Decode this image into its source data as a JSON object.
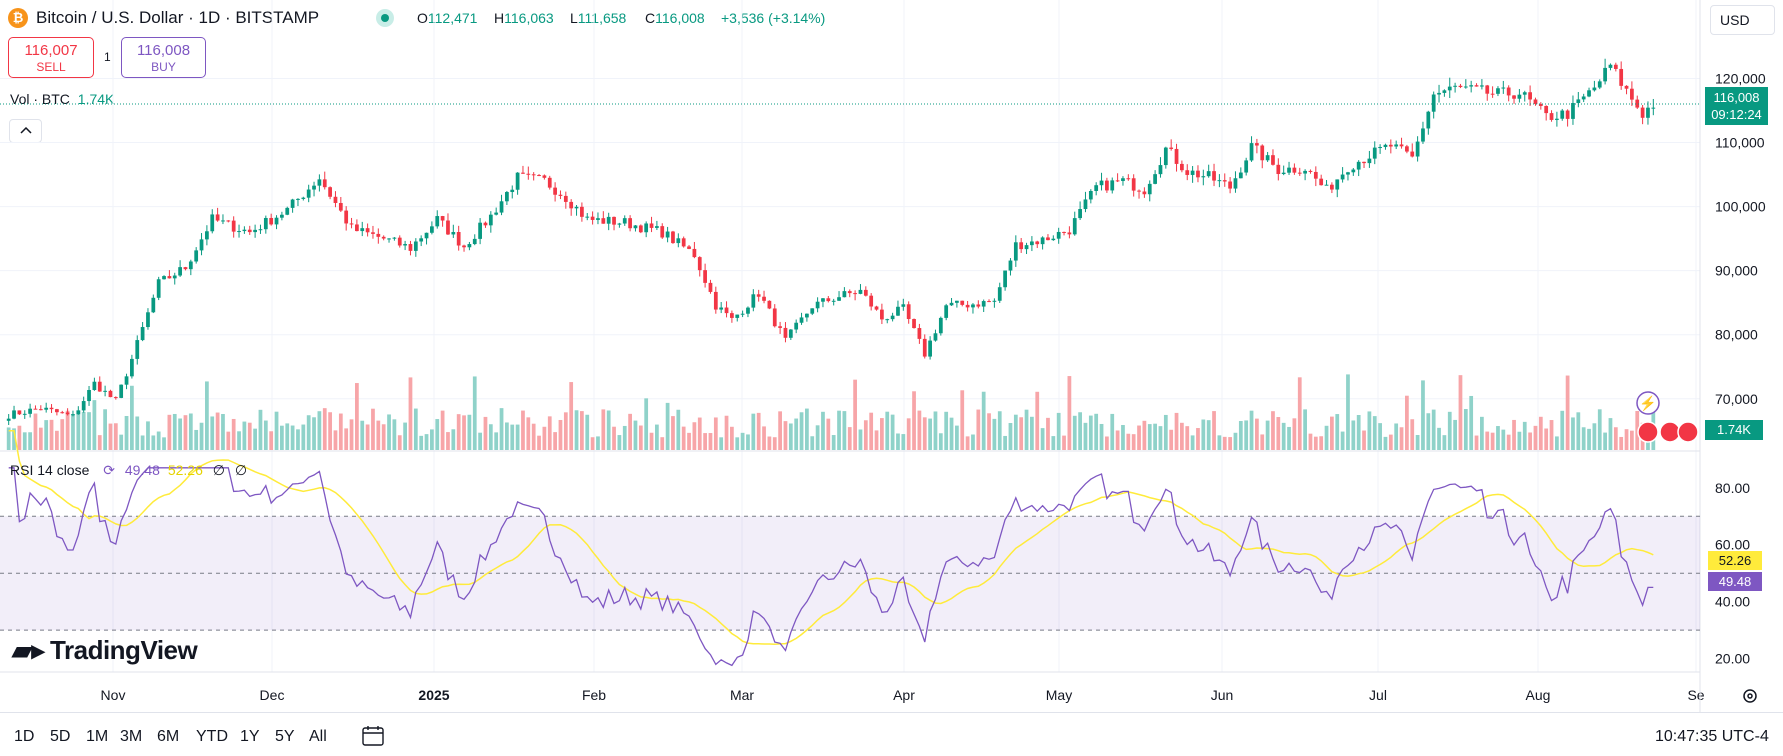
{
  "header": {
    "icon_glyph": "₿",
    "title": "Bitcoin / U.S. Dollar · 1D · BITSTAMP",
    "ohlc": {
      "o_label": "O",
      "o": "112,471",
      "h_label": "H",
      "h": "116,063",
      "l_label": "L",
      "l": "111,658",
      "c_label": "C",
      "c": "116,008",
      "change": "+3,536 (+3.14%)"
    },
    "currency": "USD"
  },
  "trade": {
    "sell_price": "116,007",
    "sell_label": "SELL",
    "spread": "1",
    "buy_price": "116,008",
    "buy_label": "BUY"
  },
  "volume_legend": {
    "label": "Vol · BTC",
    "value": "1.74K"
  },
  "rsi_legend": {
    "label": "RSI 14 close",
    "rsi": "49.48",
    "ma": "52.26",
    "extra1": "∅",
    "extra2": "∅"
  },
  "price_badge": {
    "price": "116,008",
    "countdown": "09:12:24"
  },
  "volume_badge": "1.74K",
  "rsi_badges": {
    "ma": "52.26",
    "rsi": "49.48"
  },
  "logo": "TradingView",
  "timeframes": [
    "1D",
    "5D",
    "1M",
    "3M",
    "6M",
    "YTD",
    "1Y",
    "5Y",
    "All"
  ],
  "clock": "10:47:35 UTC-4",
  "colors": {
    "up": "#089981",
    "down": "#f23645",
    "rsi": "#7e57c2",
    "rsi_ma": "#ffeb3b",
    "vol_up": "#8fd2c9",
    "vol_down": "#f7a5a8"
  },
  "icons": [
    "bitcoin-icon",
    "live-status-icon",
    "collapse-chevron-icon",
    "compare-icon",
    "bolt-icon",
    "us-flag-icon",
    "settings-gear-icon"
  ],
  "chart_data": {
    "type": "candlestick",
    "price_axis": {
      "ticks": [
        "120,000",
        "110,000",
        "100,000",
        "90,000",
        "80,000",
        "70,000"
      ],
      "ylim": [
        62000,
        126000
      ]
    },
    "rsi_axis": {
      "ticks": [
        "80.00",
        "60.00",
        "40.00",
        "20.00"
      ],
      "ylim": [
        16,
        88
      ],
      "bands": [
        30,
        70
      ]
    },
    "time_axis": {
      "labels": [
        "Nov",
        "Dec",
        "2025",
        "Feb",
        "Mar",
        "Apr",
        "May",
        "Jun",
        "Jul",
        "Aug",
        "Se"
      ]
    },
    "anchors": [
      [
        0,
        67500
      ],
      [
        6,
        68500
      ],
      [
        12,
        67200
      ],
      [
        16,
        72400
      ],
      [
        20,
        69600
      ],
      [
        23,
        76200
      ],
      [
        28,
        88000
      ],
      [
        33,
        90500
      ],
      [
        38,
        98000
      ],
      [
        45,
        96000
      ],
      [
        52,
        99500
      ],
      [
        58,
        104500
      ],
      [
        64,
        96500
      ],
      [
        70,
        95000
      ],
      [
        75,
        93500
      ],
      [
        80,
        98000
      ],
      [
        85,
        93800
      ],
      [
        90,
        98500
      ],
      [
        95,
        104500
      ],
      [
        100,
        104000
      ],
      [
        104,
        101500
      ],
      [
        108,
        98000
      ],
      [
        115,
        97500
      ],
      [
        122,
        96000
      ],
      [
        128,
        92500
      ],
      [
        132,
        84600
      ],
      [
        135,
        82300
      ],
      [
        140,
        86500
      ],
      [
        145,
        79000
      ],
      [
        150,
        84500
      ],
      [
        155,
        86000
      ],
      [
        159,
        86800
      ],
      [
        163,
        82500
      ],
      [
        167,
        84000
      ],
      [
        171,
        77000
      ],
      [
        175,
        84500
      ],
      [
        180,
        84800
      ],
      [
        184,
        85200
      ],
      [
        188,
        94000
      ],
      [
        193,
        94800
      ],
      [
        198,
        96400
      ],
      [
        203,
        103000
      ],
      [
        208,
        104000
      ],
      [
        212,
        102700
      ],
      [
        216,
        109000
      ],
      [
        220,
        105500
      ],
      [
        224,
        104600
      ],
      [
        228,
        103000
      ],
      [
        232,
        109300
      ],
      [
        237,
        105800
      ],
      [
        242,
        106000
      ],
      [
        246,
        102500
      ],
      [
        250,
        106300
      ],
      [
        254,
        108000
      ],
      [
        258,
        109500
      ],
      [
        262,
        107500
      ],
      [
        266,
        117500
      ],
      [
        270,
        118500
      ],
      [
        274,
        118000
      ],
      [
        278,
        117500
      ],
      [
        282,
        117800
      ],
      [
        287,
        114000
      ],
      [
        291,
        114500
      ],
      [
        296,
        118500
      ],
      [
        299,
        122000
      ],
      [
        302,
        118000
      ],
      [
        305,
        114500
      ],
      [
        307,
        116000
      ]
    ],
    "last_index": 307,
    "volume_max": 1.0
  }
}
